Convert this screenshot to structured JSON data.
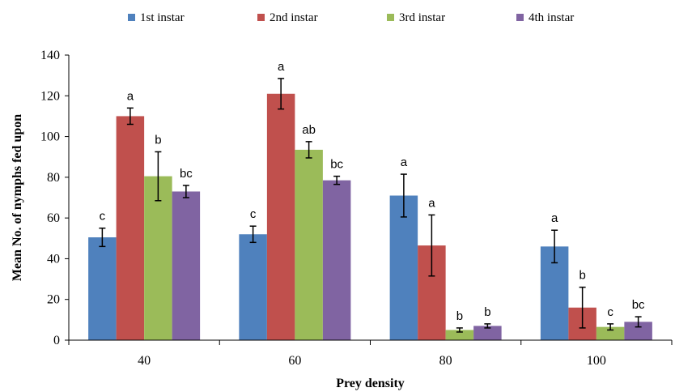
{
  "chart_data": {
    "type": "bar",
    "xlabel": "Prey density",
    "ylabel": "Mean No. of nymphs fed upon",
    "ylim": [
      0,
      140
    ],
    "yticks": [
      0,
      20,
      40,
      60,
      80,
      100,
      120,
      140
    ],
    "grid": false,
    "legend_position": "top",
    "categories": [
      "40",
      "60",
      "80",
      "100"
    ],
    "series": [
      {
        "name": "1st instar",
        "color": "#4F81BD",
        "values": [
          50.5,
          52.0,
          71.0,
          46.0
        ],
        "errors": [
          4.5,
          4.0,
          10.5,
          8.0
        ],
        "labels": [
          "c",
          "c",
          "a",
          "a"
        ]
      },
      {
        "name": "2nd instar",
        "color": "#C0504D",
        "values": [
          110.0,
          121.0,
          46.5,
          16.0
        ],
        "errors": [
          4.0,
          7.5,
          15.0,
          10.0
        ],
        "labels": [
          "a",
          "a",
          "a",
          "b"
        ]
      },
      {
        "name": "3rd instar",
        "color": "#9BBB59",
        "values": [
          80.5,
          93.5,
          5.0,
          6.5
        ],
        "errors": [
          12.0,
          4.0,
          1.0,
          1.5
        ],
        "labels": [
          "b",
          "ab",
          "b",
          "c"
        ]
      },
      {
        "name": "4th instar",
        "color": "#8064A2",
        "values": [
          73.0,
          78.5,
          7.0,
          9.0
        ],
        "errors": [
          3.0,
          2.0,
          1.0,
          2.5
        ],
        "labels": [
          "bc",
          "bc",
          "b",
          "bc"
        ]
      }
    ]
  }
}
